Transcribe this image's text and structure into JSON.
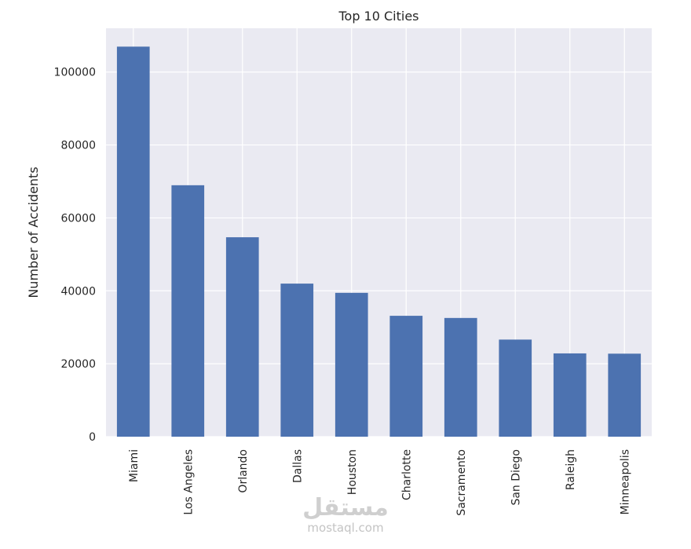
{
  "chart_data": {
    "type": "bar",
    "title": "Top 10 Cities",
    "xlabel": "",
    "ylabel": "Number of Accidents",
    "categories": [
      "Miami",
      "Los Angeles",
      "Orlando",
      "Dallas",
      "Houston",
      "Charlotte",
      "Sacramento",
      "San Diego",
      "Raleigh",
      "Minneapolis"
    ],
    "values": [
      106966,
      68956,
      54691,
      41979,
      39448,
      33152,
      32559,
      26627,
      22840,
      22768
    ],
    "ylim": [
      0,
      112000
    ],
    "yticks": [
      0,
      20000,
      40000,
      60000,
      80000,
      100000
    ],
    "grid": true,
    "legend": "none",
    "colors": {
      "bar": "#4c72b0",
      "plot_background": "#eaeaf2",
      "grid": "#ffffff"
    }
  },
  "watermark": {
    "arabic": "مستقل",
    "latin": "mostaql.com"
  }
}
